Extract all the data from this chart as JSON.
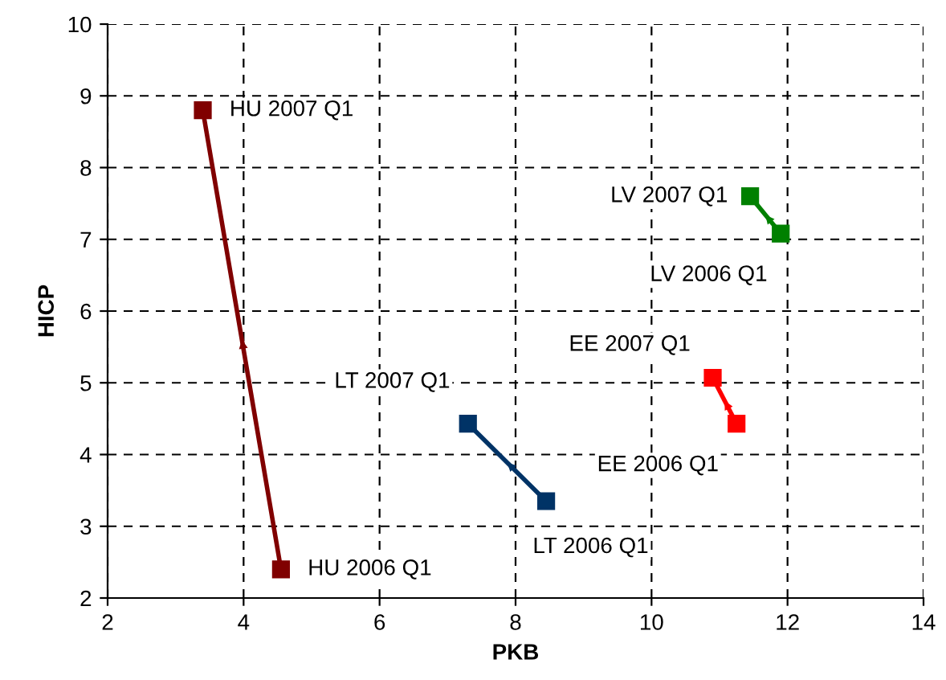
{
  "chart_data": {
    "type": "line",
    "xlabel": "PKB",
    "ylabel": "HICP",
    "xlim": [
      2,
      14
    ],
    "ylim": [
      2,
      10
    ],
    "xticks": [
      2,
      4,
      6,
      8,
      10,
      12,
      14
    ],
    "yticks": [
      2,
      3,
      4,
      5,
      6,
      7,
      8,
      9,
      10
    ],
    "grid": true,
    "marker": "square",
    "line_style": "solid",
    "series": [
      {
        "color": "#800000",
        "x": [
          4.55,
          3.4
        ],
        "values": [
          2.4,
          8.8
        ]
      },
      {
        "color": "#003366",
        "x": [
          8.45,
          7.3
        ],
        "values": [
          3.35,
          4.43
        ]
      },
      {
        "color": "#ff0000",
        "x": [
          11.25,
          10.9
        ],
        "values": [
          4.43,
          5.07
        ]
      },
      {
        "color": "#008000",
        "x": [
          11.9,
          11.45
        ],
        "values": [
          7.08,
          7.6
        ]
      }
    ],
    "annotations": [
      {
        "text": "HU 2007 Q1",
        "x": 3.4,
        "y": 8.8
      },
      {
        "text": "HU 2006 Q1",
        "x": 4.55,
        "y": 2.4
      },
      {
        "text": "LT 2007 Q1",
        "x": 7.3,
        "y": 4.43
      },
      {
        "text": "LT 2006 Q1",
        "x": 8.45,
        "y": 3.35
      },
      {
        "text": "EE 2007 Q1",
        "x": 10.9,
        "y": 5.07
      },
      {
        "text": "EE 2006 Q1",
        "x": 11.25,
        "y": 4.43
      },
      {
        "text": "LV 2007 Q1",
        "x": 11.45,
        "y": 7.6
      },
      {
        "text": "LV 2006 Q1",
        "x": 11.9,
        "y": 7.08
      }
    ]
  }
}
